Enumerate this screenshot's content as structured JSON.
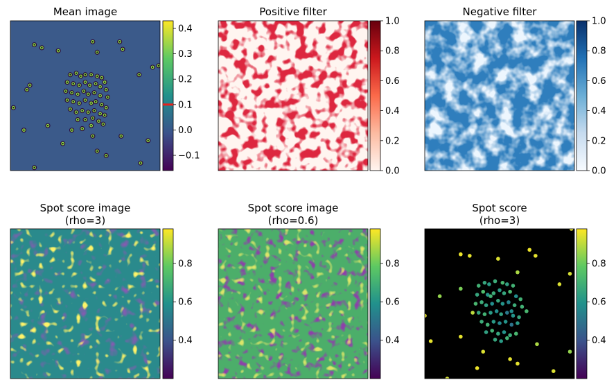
{
  "chart_data": [
    {
      "type": "heatmap",
      "title": "Mean image",
      "colormap": "viridis",
      "colorbar": {
        "min": -0.16,
        "max": 0.43,
        "ticks": [
          -0.1,
          0.0,
          0.1,
          0.2,
          0.3,
          0.4
        ],
        "tick_labels": [
          "−0.1",
          "0.0",
          "0.1",
          "0.2",
          "0.3",
          "0.4"
        ],
        "threshold_line": 0.1,
        "threshold_color": "#e8211c"
      },
      "background": "#3b5a8a",
      "spots": [
        [
          0.16,
          0.16,
          1
        ],
        [
          0.21,
          0.18,
          1
        ],
        [
          0.32,
          0.2,
          1
        ],
        [
          0.55,
          0.14,
          1
        ],
        [
          0.73,
          0.14,
          1
        ],
        [
          0.75,
          0.19,
          1
        ],
        [
          0.58,
          0.21,
          1
        ],
        [
          0.13,
          0.43,
          1
        ],
        [
          0.11,
          0.46,
          1
        ],
        [
          0.86,
          0.36,
          1
        ],
        [
          0.95,
          0.31,
          1
        ],
        [
          0.99,
          0.3,
          1
        ],
        [
          0.02,
          0.58,
          1
        ],
        [
          0.25,
          0.7,
          1
        ],
        [
          0.09,
          0.73,
          1
        ],
        [
          0.41,
          0.73,
          1
        ],
        [
          0.55,
          0.77,
          1
        ],
        [
          0.74,
          0.77,
          1
        ],
        [
          0.92,
          0.8,
          1
        ],
        [
          0.35,
          0.82,
          1
        ],
        [
          0.58,
          0.87,
          1
        ],
        [
          0.64,
          0.9,
          1
        ],
        [
          0.87,
          0.95,
          1
        ],
        [
          0.16,
          0.98,
          1
        ],
        [
          0.4,
          0.36,
          1
        ],
        [
          0.44,
          0.35,
          1
        ],
        [
          0.47,
          0.37,
          1
        ],
        [
          0.5,
          0.36,
          1
        ],
        [
          0.54,
          0.36,
          1
        ],
        [
          0.58,
          0.37,
          1
        ],
        [
          0.61,
          0.38,
          1
        ],
        [
          0.63,
          0.41,
          1
        ],
        [
          0.38,
          0.41,
          1
        ],
        [
          0.42,
          0.42,
          1
        ],
        [
          0.46,
          0.43,
          1
        ],
        [
          0.5,
          0.41,
          1
        ],
        [
          0.53,
          0.43,
          1
        ],
        [
          0.57,
          0.42,
          1
        ],
        [
          0.6,
          0.44,
          1
        ],
        [
          0.64,
          0.46,
          1
        ],
        [
          0.37,
          0.47,
          1
        ],
        [
          0.41,
          0.48,
          1
        ],
        [
          0.45,
          0.49,
          1
        ],
        [
          0.49,
          0.47,
          1
        ],
        [
          0.52,
          0.49,
          1
        ],
        [
          0.56,
          0.48,
          1
        ],
        [
          0.6,
          0.5,
          1
        ],
        [
          0.65,
          0.51,
          1
        ],
        [
          0.38,
          0.53,
          1
        ],
        [
          0.42,
          0.54,
          1
        ],
        [
          0.46,
          0.55,
          1
        ],
        [
          0.5,
          0.53,
          1
        ],
        [
          0.54,
          0.55,
          1
        ],
        [
          0.57,
          0.54,
          1
        ],
        [
          0.61,
          0.56,
          1
        ],
        [
          0.64,
          0.58,
          1
        ],
        [
          0.4,
          0.59,
          1
        ],
        [
          0.44,
          0.61,
          1
        ],
        [
          0.48,
          0.6,
          1
        ],
        [
          0.52,
          0.61,
          1
        ],
        [
          0.56,
          0.6,
          1
        ],
        [
          0.6,
          0.62,
          1
        ],
        [
          0.63,
          0.63,
          1
        ],
        [
          0.45,
          0.66,
          1
        ],
        [
          0.5,
          0.66,
          1
        ],
        [
          0.55,
          0.65,
          1
        ],
        [
          0.59,
          0.67,
          1
        ],
        [
          0.62,
          0.69,
          1
        ],
        [
          0.54,
          0.7,
          1
        ],
        [
          0.48,
          0.72,
          1
        ]
      ]
    },
    {
      "type": "heatmap",
      "title": "Positive filter",
      "colormap": "reds",
      "colorbar": {
        "min": 0.0,
        "max": 1.0,
        "ticks": [
          0.0,
          0.2,
          0.4,
          0.6,
          0.8,
          1.0
        ],
        "tick_labels": [
          "0.0",
          "0.2",
          "0.4",
          "0.6",
          "0.8",
          "1.0"
        ]
      }
    },
    {
      "type": "heatmap",
      "title": "Negative filter",
      "colormap": "blues",
      "colorbar": {
        "min": 0.0,
        "max": 1.0,
        "ticks": [
          0.0,
          0.2,
          0.4,
          0.6,
          0.8,
          1.0
        ],
        "tick_labels": [
          "0.0",
          "0.2",
          "0.4",
          "0.6",
          "0.8",
          "1.0"
        ]
      }
    },
    {
      "type": "heatmap",
      "title": "Spot score image",
      "subtitle": "(rho=3)",
      "colormap": "viridis",
      "colorbar": {
        "min": 0.2,
        "max": 0.98,
        "ticks": [
          0.4,
          0.6,
          0.8
        ],
        "tick_labels": [
          "0.4",
          "0.6",
          "0.8"
        ]
      }
    },
    {
      "type": "heatmap",
      "title": "Spot score image",
      "subtitle": "(rho=0.6)",
      "colormap": "viridis",
      "colorbar": {
        "min": 0.2,
        "max": 0.98,
        "ticks": [
          0.4,
          0.6,
          0.8
        ],
        "tick_labels": [
          "0.4",
          "0.6",
          "0.8"
        ]
      }
    },
    {
      "type": "scatter",
      "title": "Spot score",
      "subtitle": "(rho=3)",
      "colormap": "viridis",
      "background": "#000000",
      "colorbar": {
        "min": 0.2,
        "max": 0.98,
        "ticks": [
          0.4,
          0.6,
          0.8
        ],
        "tick_labels": [
          "0.4",
          "0.6",
          "0.8"
        ]
      },
      "points": [
        [
          0.24,
          0.17,
          0.96
        ],
        [
          0.3,
          0.18,
          0.95
        ],
        [
          0.49,
          0.2,
          0.94
        ],
        [
          0.7,
          0.14,
          0.96
        ],
        [
          0.74,
          0.18,
          0.95
        ],
        [
          0.98,
          0.0,
          0.95
        ],
        [
          0.62,
          0.29,
          0.88
        ],
        [
          0.97,
          0.3,
          0.93
        ],
        [
          0.9,
          0.37,
          0.94
        ],
        [
          0.24,
          0.4,
          0.82
        ],
        [
          0.1,
          0.45,
          0.85
        ],
        [
          0.0,
          0.58,
          0.95
        ],
        [
          0.32,
          0.56,
          0.9
        ],
        [
          0.04,
          0.75,
          0.95
        ],
        [
          0.24,
          0.72,
          0.95
        ],
        [
          0.75,
          0.77,
          0.88
        ],
        [
          0.97,
          0.82,
          0.85
        ],
        [
          0.39,
          0.82,
          0.94
        ],
        [
          0.57,
          0.87,
          0.95
        ],
        [
          0.62,
          0.9,
          0.95
        ],
        [
          0.35,
          0.93,
          0.96
        ],
        [
          0.86,
          0.95,
          0.94
        ],
        [
          0.15,
          1.0,
          0.93
        ],
        [
          0.36,
          0.38,
          0.7
        ],
        [
          0.4,
          0.36,
          0.66
        ],
        [
          0.43,
          0.37,
          0.62
        ],
        [
          0.47,
          0.35,
          0.68
        ],
        [
          0.52,
          0.36,
          0.72
        ],
        [
          0.55,
          0.37,
          0.64
        ],
        [
          0.59,
          0.38,
          0.7
        ],
        [
          0.35,
          0.44,
          0.66
        ],
        [
          0.39,
          0.42,
          0.74
        ],
        [
          0.42,
          0.44,
          0.6
        ],
        [
          0.46,
          0.43,
          0.68
        ],
        [
          0.5,
          0.41,
          0.62
        ],
        [
          0.53,
          0.43,
          0.66
        ],
        [
          0.57,
          0.42,
          0.72
        ],
        [
          0.61,
          0.45,
          0.58
        ],
        [
          0.64,
          0.47,
          0.7
        ],
        [
          0.34,
          0.5,
          0.72
        ],
        [
          0.38,
          0.49,
          0.68
        ],
        [
          0.41,
          0.51,
          0.64
        ],
        [
          0.45,
          0.5,
          0.58
        ],
        [
          0.49,
          0.48,
          0.66
        ],
        [
          0.52,
          0.5,
          0.6
        ],
        [
          0.56,
          0.49,
          0.55
        ],
        [
          0.6,
          0.51,
          0.68
        ],
        [
          0.65,
          0.52,
          0.7
        ],
        [
          0.36,
          0.56,
          0.66
        ],
        [
          0.4,
          0.57,
          0.7
        ],
        [
          0.44,
          0.56,
          0.62
        ],
        [
          0.48,
          0.55,
          0.58
        ],
        [
          0.51,
          0.57,
          0.64
        ],
        [
          0.55,
          0.56,
          0.52
        ],
        [
          0.59,
          0.58,
          0.6
        ],
        [
          0.63,
          0.59,
          0.66
        ],
        [
          0.38,
          0.62,
          0.68
        ],
        [
          0.42,
          0.64,
          0.7
        ],
        [
          0.46,
          0.62,
          0.62
        ],
        [
          0.5,
          0.63,
          0.56
        ],
        [
          0.54,
          0.62,
          0.6
        ],
        [
          0.58,
          0.64,
          0.5
        ],
        [
          0.62,
          0.63,
          0.62
        ],
        [
          0.41,
          0.69,
          0.64
        ],
        [
          0.45,
          0.68,
          0.7
        ],
        [
          0.49,
          0.7,
          0.66
        ],
        [
          0.53,
          0.69,
          0.6
        ],
        [
          0.57,
          0.71,
          0.68
        ],
        [
          0.61,
          0.7,
          0.72
        ],
        [
          0.47,
          0.74,
          0.66
        ],
        [
          0.51,
          0.75,
          0.62
        ],
        [
          0.55,
          0.73,
          0.7
        ],
        [
          0.44,
          0.45,
          0.7
        ],
        [
          0.58,
          0.55,
          0.58
        ],
        [
          0.68,
          0.55,
          0.72
        ]
      ]
    }
  ]
}
